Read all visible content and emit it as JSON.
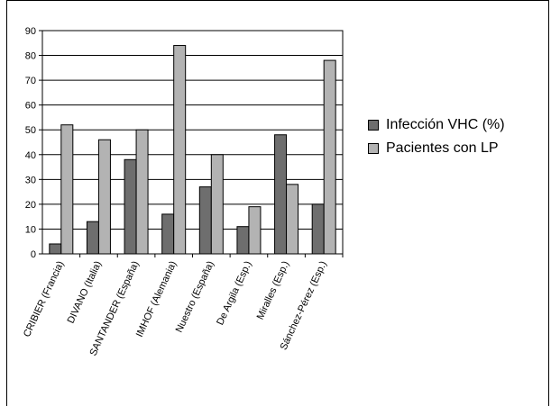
{
  "colors": {
    "series1": "#6e6e6e",
    "series2": "#b3b3b3",
    "grid": "#000000"
  },
  "chart_data": {
    "type": "bar",
    "categories": [
      "CRIBIER (Francia)",
      "DIVANO (Italia)",
      "SANTANDER (España)",
      "IMHOF (Alemania)",
      "Nuestro (España)",
      "De Argila (Esp.)",
      "Miralles (Esp.)",
      "Sánchez-Pérez (Esp.)"
    ],
    "series": [
      {
        "name": "Infección VHC (%)",
        "values": [
          4,
          13,
          38,
          16,
          27,
          11,
          48,
          20
        ]
      },
      {
        "name": "Pacientes con LP",
        "values": [
          52,
          46,
          50,
          84,
          40,
          19,
          28,
          78
        ]
      }
    ],
    "yticks": [
      0,
      10,
      20,
      30,
      40,
      50,
      60,
      70,
      80,
      90
    ],
    "ylim": [
      0,
      90
    ],
    "grid": true,
    "legend": "right"
  }
}
